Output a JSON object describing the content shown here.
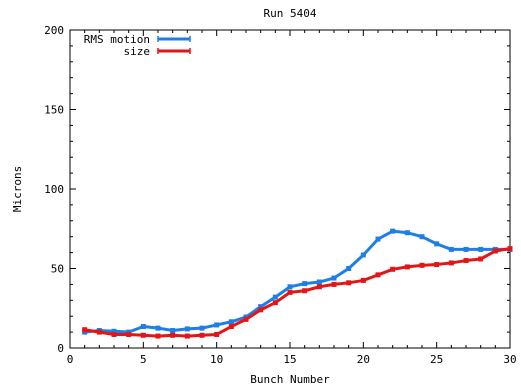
{
  "chart_data": {
    "type": "line",
    "title": "Run 5404",
    "xlabel": "Bunch Number",
    "ylabel": "Microns",
    "xlim": [
      0,
      30
    ],
    "ylim": [
      0,
      200
    ],
    "xticks": [
      0,
      5,
      10,
      15,
      20,
      25,
      30
    ],
    "yticks": [
      0,
      50,
      100,
      150,
      200
    ],
    "xtick_labels": [
      "0",
      "5",
      "10",
      "15",
      "20",
      "25",
      "30"
    ],
    "ytick_labels": [
      "0",
      "50",
      "100",
      "150",
      "200"
    ],
    "grid": false,
    "legend_position": "top-left",
    "x": [
      1,
      2,
      3,
      4,
      5,
      6,
      7,
      8,
      9,
      10,
      11,
      12,
      13,
      14,
      15,
      16,
      17,
      18,
      19,
      20,
      21,
      22,
      23,
      24,
      25,
      26,
      27,
      28,
      29,
      30
    ],
    "series": [
      {
        "name": "RMS motion",
        "color": "#1e7ee8",
        "values": [
          10,
          11,
          10.5,
          10,
          13.5,
          12.5,
          11,
          12,
          12.5,
          14.5,
          16.5,
          19.5,
          26,
          32,
          38.5,
          40.5,
          41.5,
          44,
          50,
          58.5,
          68.5,
          73.5,
          72.5,
          70,
          65.5,
          62,
          62,
          62,
          62,
          62
        ]
      },
      {
        "name": "size",
        "color": "#e21616",
        "values": [
          11.5,
          10,
          8.5,
          8.5,
          8,
          7.5,
          8,
          7.5,
          8,
          8.5,
          13.5,
          18,
          24,
          28.5,
          35,
          36,
          38.5,
          40,
          41,
          42.5,
          46,
          49.5,
          51,
          52,
          52.5,
          53.5,
          55,
          56,
          61,
          62.5
        ]
      }
    ]
  }
}
